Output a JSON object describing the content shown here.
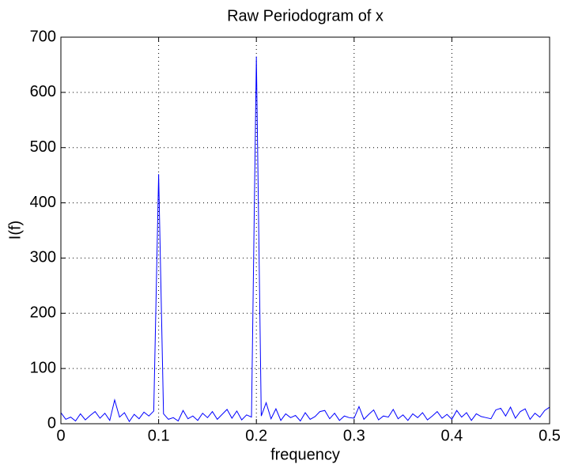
{
  "chart_data": {
    "type": "line",
    "title": "Raw Periodogram of x",
    "x_label": "frequency",
    "y_label": "I(f)",
    "x": [
      0,
      0.005,
      0.01,
      0.015,
      0.02,
      0.025,
      0.03,
      0.035,
      0.04,
      0.045,
      0.05,
      0.055,
      0.06,
      0.065,
      0.07,
      0.075,
      0.08,
      0.085,
      0.09,
      0.095,
      0.1,
      0.105,
      0.11,
      0.115,
      0.12,
      0.125,
      0.13,
      0.135,
      0.14,
      0.145,
      0.15,
      0.155,
      0.16,
      0.165,
      0.17,
      0.175,
      0.18,
      0.185,
      0.19,
      0.195,
      0.2,
      0.205,
      0.21,
      0.215,
      0.22,
      0.225,
      0.23,
      0.235,
      0.24,
      0.245,
      0.25,
      0.255,
      0.26,
      0.265,
      0.27,
      0.275,
      0.28,
      0.285,
      0.29,
      0.295,
      0.3,
      0.305,
      0.31,
      0.315,
      0.32,
      0.325,
      0.33,
      0.335,
      0.34,
      0.345,
      0.35,
      0.355,
      0.36,
      0.365,
      0.37,
      0.375,
      0.38,
      0.385,
      0.39,
      0.395,
      0.4,
      0.405,
      0.41,
      0.415,
      0.42,
      0.425,
      0.43,
      0.435,
      0.44,
      0.445,
      0.45,
      0.455,
      0.46,
      0.465,
      0.47,
      0.475,
      0.48,
      0.485,
      0.49,
      0.495,
      0.5
    ],
    "series": [
      {
        "color": "#0000ff",
        "values": [
          20,
          8,
          12,
          5,
          18,
          7,
          15,
          22,
          10,
          19,
          6,
          43,
          12,
          20,
          4,
          17,
          9,
          21,
          14,
          23,
          452,
          18,
          8,
          11,
          5,
          24,
          9,
          14,
          6,
          19,
          11,
          22,
          8,
          17,
          26,
          10,
          23,
          7,
          16,
          12,
          665,
          14,
          38,
          9,
          27,
          6,
          18,
          11,
          15,
          5,
          20,
          8,
          13,
          22,
          24,
          9,
          19,
          6,
          14,
          11,
          10,
          31,
          8,
          17,
          25,
          7,
          14,
          12,
          26,
          9,
          16,
          6,
          18,
          11,
          20,
          7,
          14,
          22,
          10,
          17,
          8,
          24,
          12,
          20,
          6,
          18,
          13,
          11,
          9,
          25,
          28,
          14,
          30,
          10,
          22,
          27,
          8,
          19,
          12,
          24,
          30
        ]
      }
    ],
    "xlim": [
      0,
      0.5
    ],
    "ylim": [
      0,
      700
    ],
    "xticks": [
      0,
      0.1,
      0.2,
      0.3,
      0.4,
      0.5
    ],
    "yticks": [
      0,
      100,
      200,
      300,
      400,
      500,
      600,
      700
    ],
    "grid": true
  }
}
